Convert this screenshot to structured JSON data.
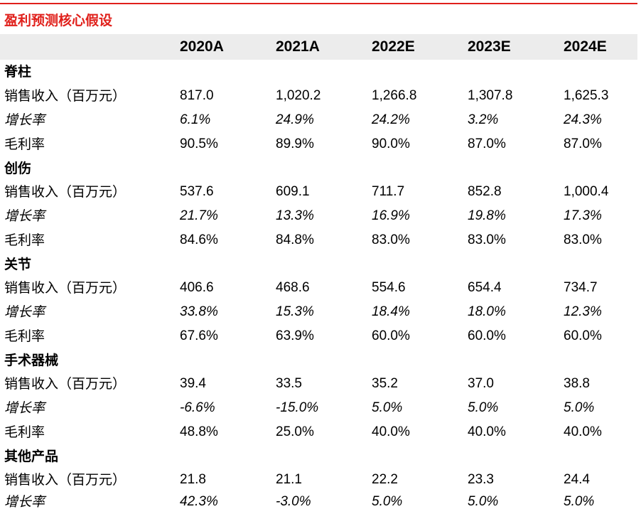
{
  "title": "盈利预测核心假设",
  "columns": [
    "2020A",
    "2021A",
    "2022E",
    "2023E",
    "2024E"
  ],
  "sections": [
    {
      "name": "脊柱",
      "rows": [
        {
          "label": "销售收入（百万元）",
          "values": [
            "817.0",
            "1,020.2",
            "1,266.8",
            "1,307.8",
            "1,625.3"
          ]
        },
        {
          "label": "增长率",
          "values": [
            "6.1%",
            "24.9%",
            "24.2%",
            "3.2%",
            "24.3%"
          ]
        },
        {
          "label": "毛利率",
          "values": [
            "90.5%",
            "89.9%",
            "90.0%",
            "87.0%",
            "87.0%"
          ]
        }
      ]
    },
    {
      "name": "创伤",
      "rows": [
        {
          "label": "销售收入（百万元）",
          "values": [
            "537.6",
            "609.1",
            "711.7",
            "852.8",
            "1,000.4"
          ]
        },
        {
          "label": "增长率",
          "values": [
            "21.7%",
            "13.3%",
            "16.9%",
            "19.8%",
            "17.3%"
          ]
        },
        {
          "label": "毛利率",
          "values": [
            "84.6%",
            "84.8%",
            "83.0%",
            "83.0%",
            "83.0%"
          ]
        }
      ]
    },
    {
      "name": "关节",
      "rows": [
        {
          "label": "销售收入（百万元）",
          "values": [
            "406.6",
            "468.6",
            "554.6",
            "654.4",
            "734.7"
          ]
        },
        {
          "label": "增长率",
          "values": [
            "33.8%",
            "15.3%",
            "18.4%",
            "18.0%",
            "12.3%"
          ]
        },
        {
          "label": "毛利率",
          "values": [
            "67.6%",
            "63.9%",
            "60.0%",
            "60.0%",
            "60.0%"
          ]
        }
      ]
    },
    {
      "name": "手术器械",
      "rows": [
        {
          "label": "销售收入（百万元）",
          "values": [
            "39.4",
            "33.5",
            "35.2",
            "37.0",
            "38.8"
          ]
        },
        {
          "label": "增长率",
          "values": [
            "-6.6%",
            "-15.0%",
            "5.0%",
            "5.0%",
            "5.0%"
          ]
        },
        {
          "label": "毛利率",
          "values": [
            "48.8%",
            "25.0%",
            "40.0%",
            "40.0%",
            "40.0%"
          ]
        }
      ]
    },
    {
      "name": "其他产品",
      "rows": [
        {
          "label": "销售收入（百万元）",
          "values": [
            "21.8",
            "21.1",
            "22.2",
            "23.3",
            "24.4"
          ]
        },
        {
          "label": "增长率",
          "values": [
            "42.3%",
            "-3.0%",
            "5.0%",
            "5.0%",
            "5.0%"
          ]
        }
      ]
    }
  ]
}
